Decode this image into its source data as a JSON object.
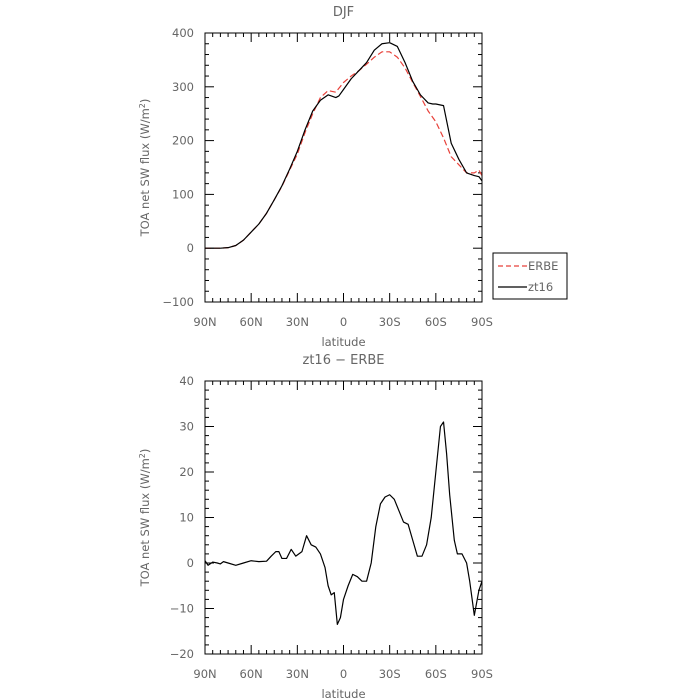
{
  "chart_data": [
    {
      "type": "line",
      "title": "DJF",
      "xlabel": "latitude",
      "ylabel": "TOA net SW flux (W/m²)",
      "xlim": [
        -90,
        90
      ],
      "ylim": [
        -100,
        400
      ],
      "x_tick_values": [
        -90,
        -60,
        -30,
        0,
        30,
        60,
        90
      ],
      "x_tick_labels": [
        "90N",
        "60N",
        "30N",
        "0",
        "30S",
        "60S",
        "90S"
      ],
      "y_tick_values": [
        -100,
        0,
        100,
        200,
        300,
        400
      ],
      "y_tick_labels": [
        "−100",
        "0",
        "100",
        "200",
        "300",
        "400"
      ],
      "grid": false,
      "legend": "right",
      "series": [
        {
          "name": "ERBE",
          "color": "#e8413a",
          "dash": "dashed",
          "x": [
            -90,
            -85,
            -80,
            -75,
            -70,
            -65,
            -60,
            -55,
            -50,
            -45,
            -40,
            -35,
            -30,
            -25,
            -20,
            -15,
            -10,
            -5,
            0,
            5,
            10,
            15,
            20,
            25,
            30,
            35,
            40,
            45,
            50,
            55,
            60,
            65,
            70,
            75,
            80,
            85,
            88,
            90
          ],
          "y": [
            0,
            0,
            0,
            1,
            5,
            15,
            30,
            45,
            65,
            90,
            115,
            145,
            175,
            215,
            250,
            280,
            293,
            290,
            308,
            320,
            330,
            342,
            355,
            365,
            365,
            355,
            335,
            308,
            282,
            255,
            235,
            205,
            170,
            155,
            140,
            140,
            145,
            135
          ]
        },
        {
          "name": "zt16",
          "color": "#000000",
          "dash": "solid",
          "x": [
            -90,
            -85,
            -80,
            -75,
            -70,
            -65,
            -60,
            -55,
            -50,
            -45,
            -40,
            -35,
            -30,
            -25,
            -20,
            -15,
            -10,
            -5,
            -3,
            0,
            5,
            10,
            15,
            20,
            25,
            30,
            35,
            40,
            45,
            50,
            55,
            58,
            60,
            65,
            70,
            75,
            80,
            85,
            88,
            90
          ],
          "y": [
            0,
            0,
            0,
            1,
            5,
            15,
            30,
            45,
            65,
            90,
            116,
            147,
            180,
            220,
            255,
            275,
            285,
            280,
            283,
            295,
            315,
            330,
            345,
            368,
            380,
            382,
            375,
            345,
            310,
            285,
            270,
            268,
            268,
            265,
            195,
            165,
            140,
            135,
            133,
            125
          ]
        }
      ]
    },
    {
      "type": "line",
      "title": "zt16 − ERBE",
      "xlabel": "latitude",
      "ylabel": "TOA net SW flux (W/m²)",
      "xlim": [
        -90,
        90
      ],
      "ylim": [
        -20,
        40
      ],
      "x_tick_values": [
        -90,
        -60,
        -30,
        0,
        30,
        60,
        90
      ],
      "x_tick_labels": [
        "90N",
        "60N",
        "30N",
        "0",
        "30S",
        "60S",
        "90S"
      ],
      "y_tick_values": [
        -20,
        -10,
        0,
        10,
        20,
        30,
        40
      ],
      "y_tick_labels": [
        "−20",
        "−10",
        "0",
        "10",
        "20",
        "30",
        "40"
      ],
      "grid": false,
      "series": [
        {
          "color": "#000000",
          "dash": "solid",
          "x": [
            -90,
            -88,
            -85,
            -82,
            -80,
            -78,
            -75,
            -70,
            -65,
            -60,
            -55,
            -50,
            -47,
            -44,
            -42,
            -40,
            -37,
            -34,
            -31,
            -29,
            -27,
            -24,
            -21,
            -18,
            -15,
            -12,
            -10,
            -8,
            -6,
            -4,
            -2,
            0,
            3,
            6,
            9,
            12,
            15,
            18,
            21,
            24,
            27,
            30,
            33,
            36,
            39,
            42,
            45,
            48,
            51,
            54,
            57,
            60,
            63,
            65,
            67,
            69,
            72,
            74,
            77,
            80,
            82,
            85,
            88,
            90
          ],
          "y": [
            0.5,
            -0.5,
            0.2,
            0,
            -0.2,
            0.3,
            0,
            -0.5,
            0,
            0.5,
            0.3,
            0.4,
            1.5,
            2.5,
            2.5,
            1,
            1,
            3,
            1.5,
            2,
            2.5,
            6,
            4,
            3.5,
            2,
            -1,
            -5,
            -7,
            -6.5,
            -13.5,
            -12,
            -8,
            -5,
            -2.5,
            -3,
            -4,
            -4,
            0,
            8,
            13,
            14.5,
            15,
            14,
            11.5,
            9,
            8.5,
            5,
            1.5,
            1.5,
            4,
            10,
            20,
            30,
            31,
            24,
            15,
            5,
            2,
            2,
            0,
            -4,
            -11.5,
            -6,
            -4
          ]
        }
      ]
    }
  ]
}
